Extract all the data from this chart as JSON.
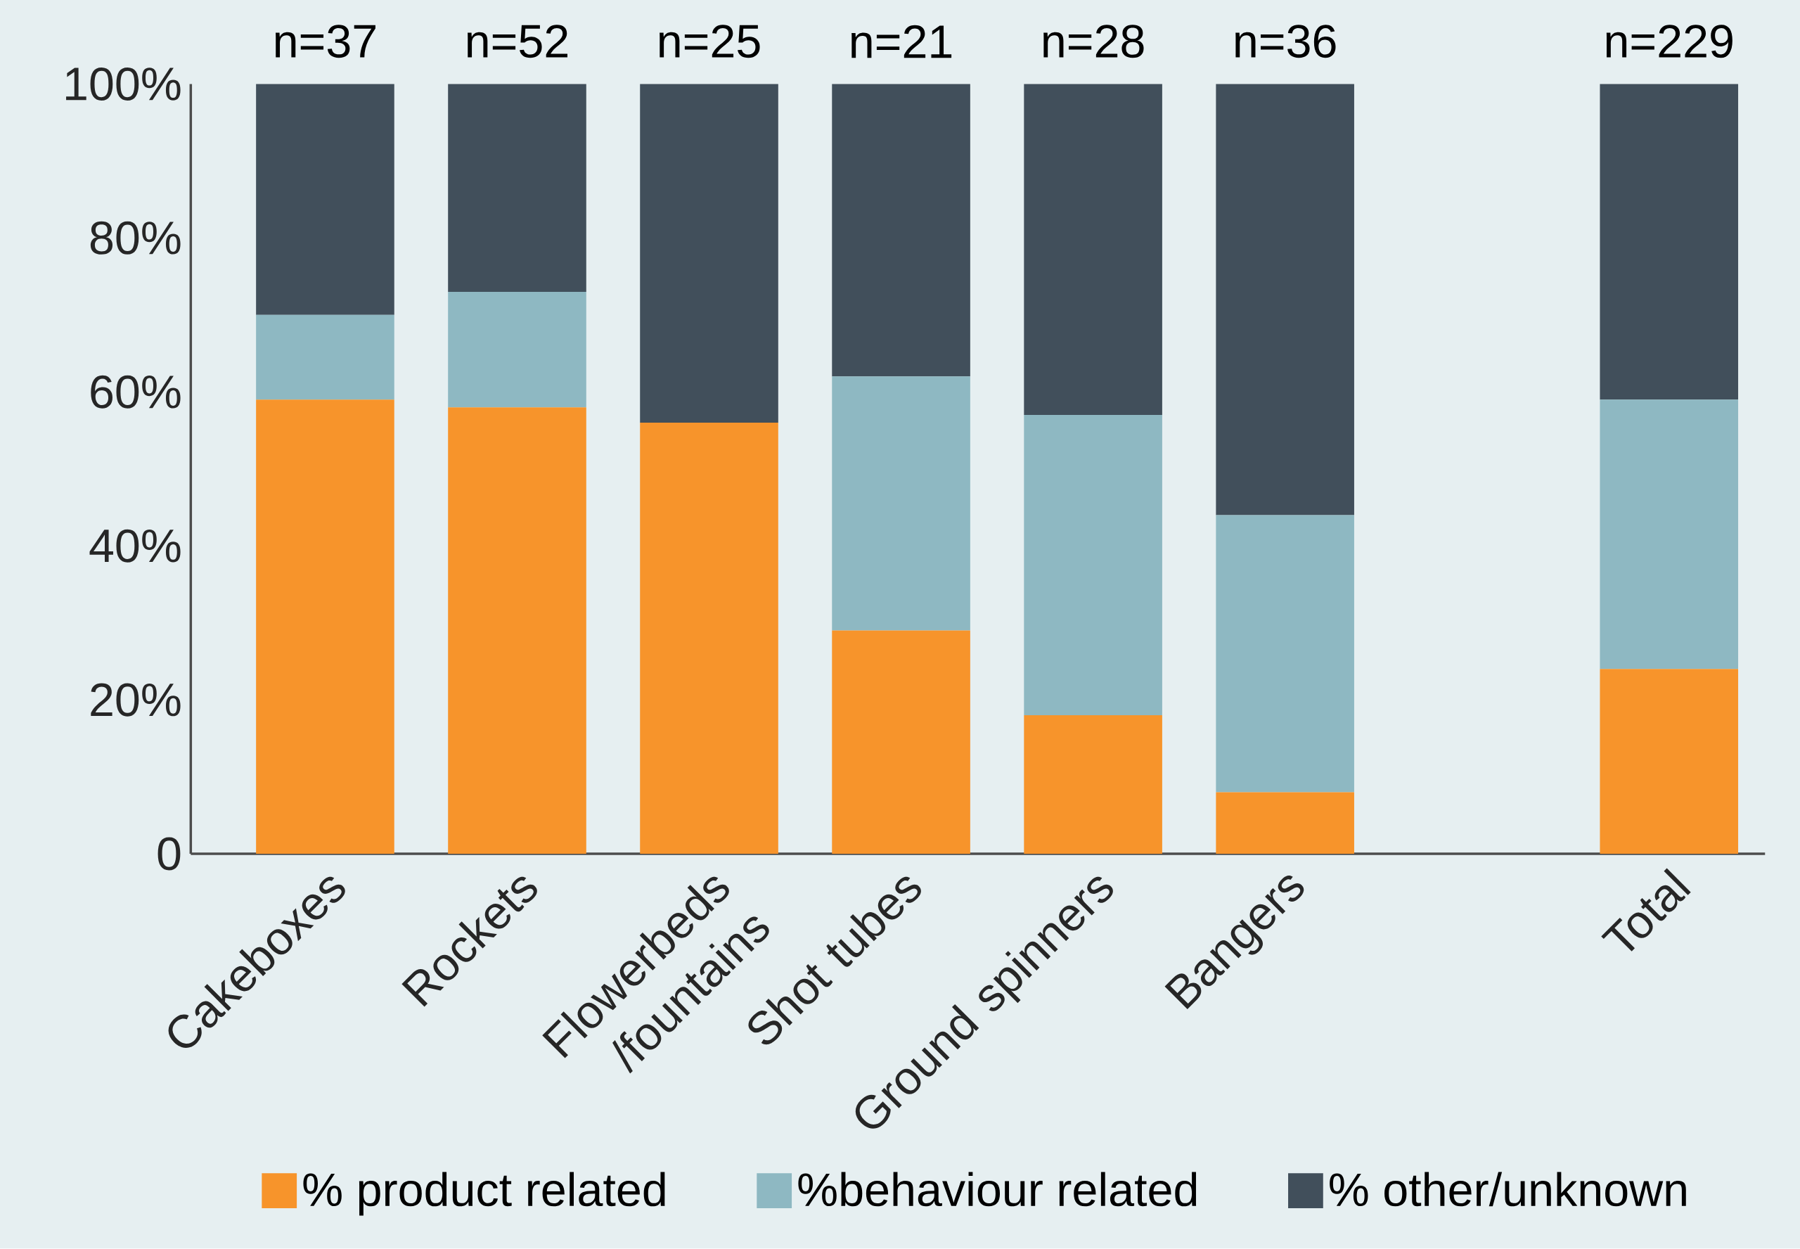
{
  "chart_data": {
    "type": "bar",
    "stacked": true,
    "categories": [
      "Cakeboxes",
      "Rockets",
      "Flowerbeds /fountains",
      "Shot tubes",
      "Ground spinners",
      "Bangers",
      null,
      "Total"
    ],
    "series": [
      {
        "name": "% product related",
        "color": "#f7942b",
        "values": [
          59,
          58,
          56,
          29,
          18,
          8,
          null,
          24
        ]
      },
      {
        "name": "%behaviour related",
        "color": "#8eb8c2",
        "values": [
          11,
          15,
          0,
          33,
          39,
          36,
          null,
          35
        ]
      },
      {
        "name": "% other/unknown",
        "color": "#414f5b",
        "values": [
          30,
          27,
          44,
          38,
          43,
          56,
          null,
          41
        ]
      }
    ],
    "annotations": [
      {
        "text": "n=37",
        "x": "Cakeboxes",
        "y": 100
      },
      {
        "text": "n=52",
        "x": "Rockets",
        "y": 100
      },
      {
        "text": "n=25",
        "x": "Flowerbeds /fountains",
        "y": 100
      },
      {
        "text": "n=21",
        "x": "Shot tubes",
        "y": 100
      },
      {
        "text": "n=28",
        "x": "Ground spinners",
        "y": 100
      },
      {
        "text": "n=36",
        "x": "Bangers",
        "y": 100
      },
      {
        "text": "n=229",
        "x": "Total",
        "y": 100
      }
    ],
    "ylim": [
      0,
      100
    ],
    "yticks": [
      0,
      {
        "value": 20,
        "label": "20%"
      },
      {
        "value": 40,
        "label": "40%"
      },
      {
        "value": 60,
        "label": "60%"
      },
      {
        "value": 80,
        "label": "80%"
      },
      {
        "value": 100,
        "label": "100%"
      }
    ],
    "grid": false,
    "legend": "bottom"
  }
}
